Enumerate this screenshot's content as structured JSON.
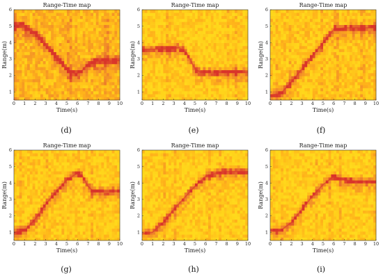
{
  "colors": {
    "background": "#FFD21A",
    "noise_light": "#FFE81F",
    "noise_dark": "#FFB21A",
    "trace_weak": "#F08A2A",
    "trace_strong": "#D9352A",
    "text": "#222222"
  },
  "chart_data": [
    {
      "id": "d",
      "type": "heatmap",
      "caption": "(d)",
      "title": "Range-Time map",
      "xlabel": "Time(s)",
      "ylabel": "Range(m)",
      "xlim": [
        0,
        10
      ],
      "ylim": [
        0.5,
        6
      ],
      "xticks": [
        "0",
        "1",
        "2",
        "3",
        "4",
        "5",
        "6",
        "7",
        "8",
        "9",
        "10"
      ],
      "yticks": [
        "1",
        "2",
        "3",
        "4",
        "5",
        "6"
      ],
      "colormap": "autumn",
      "base_noise": 0.42,
      "trace": [
        {
          "t": 0,
          "r": 5.1
        },
        {
          "t": 1,
          "r": 5.0
        },
        {
          "t": 2,
          "r": 4.6
        },
        {
          "t": 3,
          "r": 3.9
        },
        {
          "t": 4,
          "r": 3.1
        },
        {
          "t": 5,
          "r": 2.4
        },
        {
          "t": 5.8,
          "r": 2.1
        },
        {
          "t": 6.3,
          "r": 2.2
        },
        {
          "t": 7,
          "r": 2.7
        },
        {
          "t": 8,
          "r": 2.9
        },
        {
          "t": 9,
          "r": 2.9
        },
        {
          "t": 10,
          "r": 2.9
        }
      ]
    },
    {
      "id": "e",
      "type": "heatmap",
      "caption": "(e)",
      "title": "Range-Time map",
      "xlabel": "Time(s)",
      "ylabel": "Range(m)",
      "xlim": [
        0,
        10
      ],
      "ylim": [
        0.5,
        6
      ],
      "xticks": [
        "0",
        "1",
        "2",
        "3",
        "4",
        "5",
        "6",
        "7",
        "8",
        "9",
        "10"
      ],
      "yticks": [
        "1",
        "2",
        "3",
        "4",
        "5",
        "6"
      ],
      "colormap": "autumn",
      "base_noise": 0.12,
      "trace": [
        {
          "t": 0,
          "r": 3.6
        },
        {
          "t": 2,
          "r": 3.6
        },
        {
          "t": 3.5,
          "r": 3.7
        },
        {
          "t": 4.2,
          "r": 3.4
        },
        {
          "t": 5,
          "r": 2.4
        },
        {
          "t": 5.5,
          "r": 2.2
        },
        {
          "t": 7,
          "r": 2.2
        },
        {
          "t": 10,
          "r": 2.2
        }
      ]
    },
    {
      "id": "f",
      "type": "heatmap",
      "caption": "(f)",
      "title": "Range-Time map",
      "xlabel": "Time(s)",
      "ylabel": "Range(m)",
      "xlim": [
        0,
        10
      ],
      "ylim": [
        0.5,
        6
      ],
      "xticks": [
        "0",
        "1",
        "2",
        "3",
        "4",
        "5",
        "6",
        "7",
        "8",
        "9",
        "10"
      ],
      "yticks": [
        "1",
        "2",
        "3",
        "4",
        "5",
        "6"
      ],
      "colormap": "autumn",
      "base_noise": 0.2,
      "trace": [
        {
          "t": 0,
          "r": 0.8
        },
        {
          "t": 1,
          "r": 0.9
        },
        {
          "t": 2,
          "r": 1.6
        },
        {
          "t": 3,
          "r": 2.4
        },
        {
          "t": 4,
          "r": 3.2
        },
        {
          "t": 5,
          "r": 4.0
        },
        {
          "t": 6,
          "r": 4.8
        },
        {
          "t": 7,
          "r": 4.9
        },
        {
          "t": 8,
          "r": 4.9
        },
        {
          "t": 10,
          "r": 4.9
        }
      ]
    },
    {
      "id": "g",
      "type": "heatmap",
      "caption": "(g)",
      "title": "Range-Time map",
      "xlabel": "Time(s)",
      "ylabel": "Range(m)",
      "xlim": [
        0,
        10
      ],
      "ylim": [
        0.5,
        6
      ],
      "xticks": [
        "0",
        "1",
        "2",
        "3",
        "4",
        "5",
        "6",
        "7",
        "8",
        "9",
        "10"
      ],
      "yticks": [
        "1",
        "2",
        "3",
        "4",
        "5",
        "6"
      ],
      "colormap": "autumn",
      "base_noise": 0.15,
      "trace": [
        {
          "t": 0,
          "r": 1.0
        },
        {
          "t": 1,
          "r": 1.1
        },
        {
          "t": 2,
          "r": 1.8
        },
        {
          "t": 3,
          "r": 2.7
        },
        {
          "t": 4,
          "r": 3.5
        },
        {
          "t": 5,
          "r": 4.2
        },
        {
          "t": 6,
          "r": 4.6
        },
        {
          "t": 6.5,
          "r": 4.4
        },
        {
          "t": 7,
          "r": 3.8
        },
        {
          "t": 7.5,
          "r": 3.5
        },
        {
          "t": 10,
          "r": 3.5
        }
      ]
    },
    {
      "id": "h",
      "type": "heatmap",
      "caption": "(h)",
      "title": "Range-Time map",
      "xlabel": "Time(s)",
      "ylabel": "Range(m)",
      "xlim": [
        0,
        10
      ],
      "ylim": [
        0.5,
        6
      ],
      "xticks": [
        "0",
        "1",
        "2",
        "3",
        "4",
        "5",
        "6",
        "7",
        "8",
        "9",
        "10"
      ],
      "yticks": [
        "1",
        "2",
        "3",
        "4",
        "5",
        "6"
      ],
      "colormap": "autumn",
      "base_noise": 0.1,
      "trace": [
        {
          "t": 0,
          "r": 0.9
        },
        {
          "t": 1,
          "r": 1.0
        },
        {
          "t": 2,
          "r": 1.6
        },
        {
          "t": 3,
          "r": 2.4
        },
        {
          "t": 4,
          "r": 3.1
        },
        {
          "t": 5,
          "r": 3.8
        },
        {
          "t": 6,
          "r": 4.4
        },
        {
          "t": 7,
          "r": 4.6
        },
        {
          "t": 8,
          "r": 4.7
        },
        {
          "t": 10,
          "r": 4.7
        }
      ]
    },
    {
      "id": "i",
      "type": "heatmap",
      "caption": "(i)",
      "title": "Range-Time map",
      "xlabel": "Time(s)",
      "ylabel": "Range(m)",
      "xlim": [
        0,
        10
      ],
      "ylim": [
        0.5,
        6
      ],
      "xticks": [
        "0",
        "1",
        "2",
        "3",
        "4",
        "5",
        "6",
        "7",
        "8",
        "9",
        "10"
      ],
      "yticks": [
        "1",
        "2",
        "3",
        "4",
        "5",
        "6"
      ],
      "colormap": "autumn",
      "base_noise": 0.1,
      "trace": [
        {
          "t": 0,
          "r": 1.1
        },
        {
          "t": 1,
          "r": 1.1
        },
        {
          "t": 2,
          "r": 1.6
        },
        {
          "t": 3,
          "r": 2.4
        },
        {
          "t": 4,
          "r": 3.2
        },
        {
          "t": 5,
          "r": 3.9
        },
        {
          "t": 6,
          "r": 4.4
        },
        {
          "t": 7,
          "r": 4.2
        },
        {
          "t": 8,
          "r": 4.1
        },
        {
          "t": 10,
          "r": 4.1
        }
      ]
    }
  ]
}
